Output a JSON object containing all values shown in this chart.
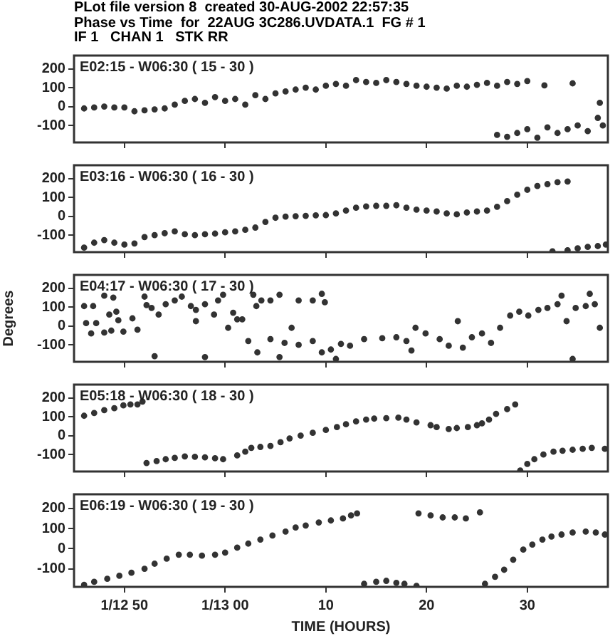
{
  "chart_data": [
    {
      "type": "other",
      "title": "PLot file version 8  created 30-AUG-2002 22:57:35",
      "subtitle": "Phase vs Time  for  22AUG 3C286.UVDATA.1  FG # 1",
      "annotations": [
        "IF 1   CHAN 1   STK RR"
      ]
    },
    {
      "type": "scatter",
      "title": "E02:15 - W06:30 ( 15 - 30 )",
      "marker": "circle",
      "xlim": [
        -15,
        38
      ],
      "ylim": [
        -190,
        270
      ],
      "yticks": [
        -100,
        0,
        100,
        200
      ],
      "xticks": [
        {
          "value": -10,
          "label": null
        },
        {
          "value": 0,
          "label": null
        },
        {
          "value": 10,
          "label": null
        },
        {
          "value": 20,
          "label": null
        },
        {
          "value": 30,
          "label": null
        }
      ],
      "tick_labels": "y",
      "series": [
        {
          "color": "#333333",
          "x": [
            -14,
            -13,
            -12,
            -11,
            -10,
            -9,
            -8,
            -7,
            -6,
            -5,
            -4,
            -3,
            -2,
            -1,
            0,
            1,
            2,
            3,
            4,
            5,
            6,
            7,
            8,
            9,
            10,
            11,
            12,
            13,
            14,
            15,
            16,
            17,
            18,
            19,
            20,
            21,
            22,
            23,
            24,
            25,
            26,
            27,
            28,
            29,
            30,
            31.7,
            34.5,
            27,
            28,
            29,
            30,
            31,
            32,
            33,
            34,
            35,
            36,
            37,
            37.5,
            37.2
          ],
          "values": [
            -10,
            -5,
            0,
            -5,
            -5,
            -25,
            -20,
            -15,
            -10,
            10,
            30,
            40,
            20,
            50,
            30,
            40,
            10,
            60,
            40,
            70,
            80,
            90,
            100,
            90,
            110,
            120,
            110,
            140,
            130,
            125,
            140,
            130,
            120,
            110,
            105,
            100,
            95,
            110,
            105,
            115,
            125,
            110,
            130,
            120,
            135,
            112,
            123,
            -150,
            -160,
            -140,
            -120,
            -165,
            -110,
            -140,
            -120,
            -100,
            -130,
            -60,
            -100,
            20
          ]
        }
      ]
    },
    {
      "type": "scatter",
      "title": "E03:16 - W06:30 ( 16 - 30 )",
      "marker": "circle",
      "xlim": [
        -15,
        38
      ],
      "ylim": [
        -190,
        270
      ],
      "yticks": [
        -100,
        0,
        100,
        200
      ],
      "xticks": [
        {
          "value": -10,
          "label": null
        },
        {
          "value": 0,
          "label": null
        },
        {
          "value": 10,
          "label": null
        },
        {
          "value": 20,
          "label": null
        },
        {
          "value": 30,
          "label": null
        }
      ],
      "tick_labels": "y",
      "series": [
        {
          "color": "#333333",
          "x": [
            -14,
            -13,
            -12,
            -11,
            -10,
            -9,
            -8,
            -7,
            -6,
            -5,
            -4,
            -3,
            -2,
            -1,
            0,
            1,
            2,
            3,
            4,
            5,
            6,
            7,
            8,
            9,
            10,
            11,
            12,
            13,
            14,
            15,
            16,
            17,
            18,
            19,
            20,
            21,
            22,
            23,
            24,
            25,
            26,
            27,
            28,
            29,
            30,
            31,
            32,
            33,
            34,
            32.5,
            34,
            35,
            36,
            37,
            37.8
          ],
          "values": [
            -166,
            -140,
            -126,
            -140,
            -150,
            -144,
            -110,
            -100,
            -90,
            -80,
            -95,
            -100,
            -95,
            -92,
            -85,
            -80,
            -72,
            -60,
            -30,
            -8,
            -2,
            0,
            2,
            5,
            6,
            15,
            30,
            45,
            52,
            55,
            55,
            58,
            45,
            35,
            30,
            25,
            15,
            10,
            20,
            25,
            30,
            50,
            80,
            114,
            140,
            160,
            170,
            180,
            184,
            -186,
            -180,
            -170,
            -162,
            -158,
            -150
          ]
        }
      ]
    },
    {
      "type": "scatter",
      "title": "E04:17 - W06:30 ( 17 - 30 )",
      "ylabel": "Degrees",
      "marker": "circle",
      "xlim": [
        -15,
        38
      ],
      "ylim": [
        -190,
        270
      ],
      "yticks": [
        -100,
        0,
        100,
        200
      ],
      "xticks": [
        {
          "value": -10,
          "label": null
        },
        {
          "value": 0,
          "label": null
        },
        {
          "value": 10,
          "label": null
        },
        {
          "value": 20,
          "label": null
        },
        {
          "value": 30,
          "label": null
        }
      ],
      "tick_labels": "y",
      "series": [
        {
          "color": "#333333",
          "x": [
            -14,
            -13.1,
            -13.8,
            -12.8,
            -13.3,
            -12,
            -11.3,
            -12,
            -11.1,
            -11.5,
            -10.8,
            -10.6,
            -10.1,
            -9.2,
            -8.7,
            -8,
            -7.8,
            -7.3,
            -6.6,
            -5.9,
            -5,
            -4.3,
            -3.4,
            -2.9,
            -2.9,
            -2,
            -1.1,
            -0.7,
            -0.2,
            0.3,
            0.8,
            1.2,
            1.7,
            2.8,
            3.1,
            3.6,
            4.5,
            5.4,
            6.6,
            7.3,
            8.7,
            9.6,
            9.9,
            2.3,
            3.2,
            4.5,
            5.9,
            7.3,
            8.7,
            9.6,
            10.5,
            11.5,
            12.4,
            13.8,
            15.6,
            17,
            18,
            18.9,
            18.5,
            19.9,
            21.3,
            22.2,
            23.1,
            23.6,
            24.5,
            25.5,
            26.4,
            27.3,
            28.3,
            29.2,
            30.1,
            31.1,
            32,
            33,
            33.4,
            33.9,
            34.8,
            35.8,
            36.2,
            36.7,
            37.2,
            -7,
            -2,
            5.4,
            11,
            34.5
          ],
          "values": [
            105,
            105,
            15,
            15,
            -40,
            -35,
            -25,
            160,
            150,
            60,
            75,
            30,
            -30,
            40,
            -20,
            155,
            110,
            95,
            60,
            115,
            135,
            155,
            105,
            85,
            25,
            115,
            60,
            135,
            165,
            -10,
            70,
            35,
            35,
            165,
            105,
            135,
            135,
            165,
            -10,
            135,
            135,
            170,
            125,
            -80,
            -140,
            -70,
            -90,
            -100,
            -80,
            -140,
            -125,
            -95,
            -105,
            -70,
            -65,
            -60,
            -80,
            -10,
            -130,
            -40,
            -70,
            -105,
            25,
            -115,
            -60,
            -40,
            -90,
            -10,
            55,
            75,
            55,
            85,
            95,
            115,
            160,
            25,
            95,
            105,
            170,
            115,
            -10,
            -160,
            -165,
            -165,
            -175,
            -175
          ]
        }
      ]
    },
    {
      "type": "scatter",
      "title": "E05:18 - W06:30 ( 18 - 30 )",
      "marker": "circle",
      "xlim": [
        -15,
        38
      ],
      "ylim": [
        -190,
        270
      ],
      "yticks": [
        -100,
        0,
        100,
        200
      ],
      "xticks": [
        {
          "value": -10,
          "label": null
        },
        {
          "value": 0,
          "label": null
        },
        {
          "value": 10,
          "label": null
        },
        {
          "value": 20,
          "label": null
        },
        {
          "value": 30,
          "label": null
        }
      ],
      "tick_labels": "y",
      "series": [
        {
          "color": "#333333",
          "x": [
            -14,
            -13,
            -12,
            -11,
            -10.1,
            -9.4,
            -8.7,
            -8.2,
            -7.8,
            -6.8,
            -5.9,
            -5,
            -4,
            -3,
            -2,
            -1,
            -0.2,
            1.2,
            2,
            2.6,
            3.5,
            4.5,
            5.5,
            6.4,
            7.5,
            8.7,
            10,
            11.1,
            12,
            13,
            14,
            14.8,
            16,
            17.2,
            18,
            19,
            20.4,
            21,
            22.2,
            23,
            24.1,
            25,
            25.5,
            26.2,
            26.9,
            28,
            28.8,
            29.3,
            30,
            30.7,
            31.6,
            32.6,
            33.5,
            34.5,
            35.5,
            36.4,
            37.7
          ],
          "values": [
            105,
            120,
            135,
            145,
            160,
            165,
            165,
            180,
            -145,
            -135,
            -125,
            -118,
            -110,
            -112,
            -115,
            -120,
            -125,
            -105,
            -85,
            -65,
            -60,
            -55,
            -35,
            -15,
            0,
            15,
            30,
            45,
            60,
            75,
            85,
            90,
            92,
            95,
            85,
            70,
            55,
            45,
            35,
            40,
            45,
            55,
            65,
            85,
            115,
            140,
            165,
            -185,
            -150,
            -125,
            -100,
            -85,
            -80,
            -75,
            -70,
            -65,
            -70
          ]
        }
      ]
    },
    {
      "type": "scatter",
      "title": "E06:19 - W06:30 ( 19 - 30 )",
      "xlabel": "TIME (HOURS)",
      "marker": "circle",
      "xlim": [
        -15,
        38
      ],
      "ylim": [
        -190,
        270
      ],
      "yticks": [
        -100,
        0,
        100,
        200
      ],
      "xticks": [
        {
          "value": -10,
          "label": "1/12 50"
        },
        {
          "value": 0,
          "label": "1/13 00"
        },
        10,
        20,
        30
      ],
      "series": [
        {
          "color": "#333333",
          "x": [
            -14,
            -13,
            -11.7,
            -10.5,
            -9.3,
            -8,
            -7,
            -5.8,
            -4.6,
            -3.5,
            -2.3,
            -1,
            0,
            1.2,
            2.3,
            3.5,
            4.7,
            6,
            7,
            8,
            9.3,
            10.5,
            11.7,
            12.5,
            13.1,
            13.8,
            15,
            16,
            17,
            17.8,
            19,
            19.2,
            20.4,
            21.6,
            22.8,
            23.9,
            25.3,
            25.8,
            26.8,
            27.7,
            28.6,
            29.6,
            30.5,
            31.5,
            32.4,
            33.4,
            34.5,
            35.8,
            36.8,
            37.7
          ],
          "values": [
            -180,
            -165,
            -150,
            -135,
            -120,
            -100,
            -75,
            -50,
            -30,
            -30,
            -35,
            -30,
            -20,
            5,
            25,
            45,
            65,
            85,
            105,
            115,
            130,
            140,
            150,
            165,
            175,
            -175,
            -165,
            -160,
            -170,
            -175,
            -185,
            175,
            165,
            155,
            155,
            150,
            180,
            -175,
            -140,
            -105,
            -55,
            -5,
            20,
            45,
            60,
            70,
            80,
            85,
            80,
            70
          ]
        }
      ]
    }
  ]
}
